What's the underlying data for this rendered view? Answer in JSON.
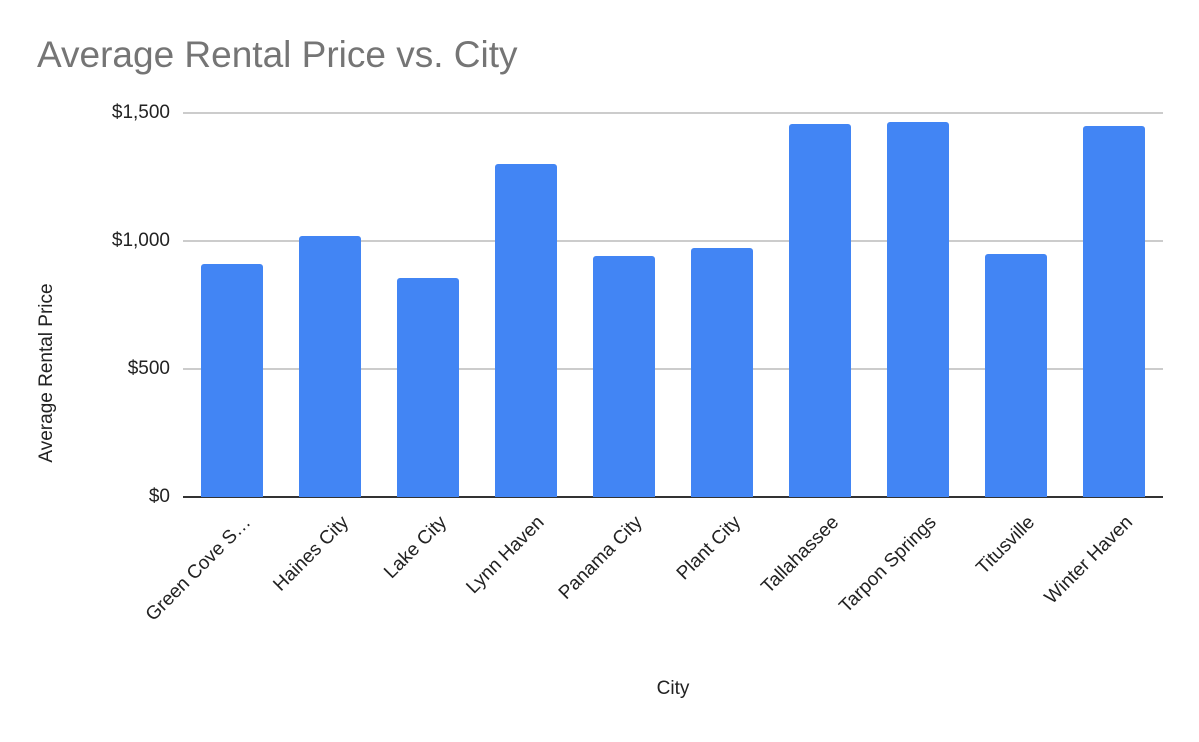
{
  "chart_data": {
    "type": "bar",
    "title": "Average Rental Price vs. City",
    "xlabel": "City",
    "ylabel": "Average Rental Price",
    "categories": [
      "Green Cove S…",
      "Haines City",
      "Lake City",
      "Lynn Haven",
      "Panama City",
      "Plant City",
      "Tallahassee",
      "Tarpon Springs",
      "Titusville",
      "Winter Haven"
    ],
    "series": [
      {
        "name": "Average Rental Price",
        "color": "#4285F4",
        "values": [
          910,
          1020,
          855,
          1300,
          941,
          973,
          1457,
          1465,
          949,
          1449
        ]
      }
    ],
    "ylim": [
      0,
      1500
    ],
    "yticks": [
      0,
      500,
      1000,
      1500
    ],
    "ytick_labels": [
      "$0",
      "$500",
      "$1,000",
      "$1,500"
    ],
    "grid": true,
    "legend": "none"
  }
}
